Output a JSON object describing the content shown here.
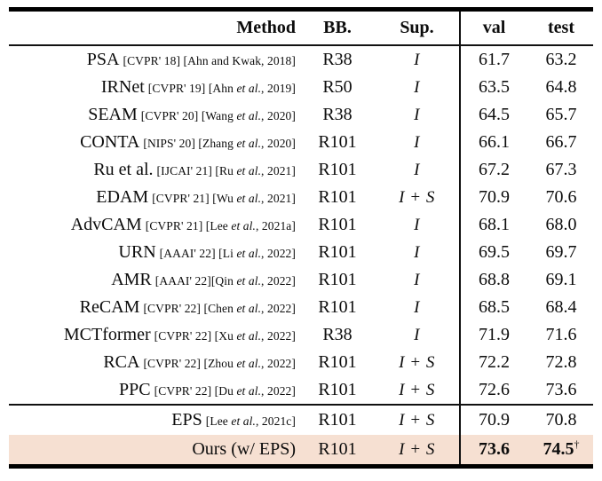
{
  "table": {
    "title": "weakly-supervised-segmentation-results",
    "highlight_bg": "#f6e0d2",
    "rule_color": "#000000",
    "headers": {
      "method": "Method",
      "bb": "BB.",
      "sup": "Sup.",
      "val": "val",
      "test": "test"
    },
    "rows": [
      {
        "name": "PSA",
        "cite_pre": "[CVPR' 18] [Ahn and Kwak, 2018]",
        "cite_italic": "",
        "cite_post": "",
        "bb": "R38",
        "sup": "I",
        "val": "61.7",
        "test": "63.2",
        "bold": false,
        "highlight": false,
        "dagger": ""
      },
      {
        "name": "IRNet",
        "cite_pre": "[CVPR' 19] [Ahn ",
        "cite_italic": "et al.",
        "cite_post": ", 2019]",
        "bb": "R50",
        "sup": "I",
        "val": "63.5",
        "test": "64.8",
        "bold": false,
        "highlight": false,
        "dagger": ""
      },
      {
        "name": "SEAM",
        "cite_pre": "[CVPR' 20] [Wang ",
        "cite_italic": "et al.",
        "cite_post": ", 2020]",
        "bb": "R38",
        "sup": "I",
        "val": "64.5",
        "test": "65.7",
        "bold": false,
        "highlight": false,
        "dagger": ""
      },
      {
        "name": "CONTA",
        "cite_pre": "[NIPS' 20] [Zhang ",
        "cite_italic": "et al.",
        "cite_post": ", 2020]",
        "bb": "R101",
        "sup": "I",
        "val": "66.1",
        "test": "66.7",
        "bold": false,
        "highlight": false,
        "dagger": ""
      },
      {
        "name": "Ru et al.",
        "cite_pre": "[IJCAI' 21] [Ru ",
        "cite_italic": "et al.",
        "cite_post": ", 2021]",
        "bb": "R101",
        "sup": "I",
        "val": "67.2",
        "test": "67.3",
        "bold": false,
        "highlight": false,
        "dagger": ""
      },
      {
        "name": "EDAM",
        "cite_pre": "[CVPR' 21] [Wu ",
        "cite_italic": "et al.",
        "cite_post": ", 2021]",
        "bb": "R101",
        "sup": "I + S",
        "val": "70.9",
        "test": "70.6",
        "bold": false,
        "highlight": false,
        "dagger": ""
      },
      {
        "name": "AdvCAM",
        "cite_pre": "[CVPR' 21] [Lee ",
        "cite_italic": "et al.",
        "cite_post": ", 2021a]",
        "bb": "R101",
        "sup": "I",
        "val": "68.1",
        "test": "68.0",
        "bold": false,
        "highlight": false,
        "dagger": ""
      },
      {
        "name": "URN",
        "cite_pre": "[AAAI' 22] [Li ",
        "cite_italic": "et al.",
        "cite_post": ", 2022]",
        "bb": "R101",
        "sup": "I",
        "val": "69.5",
        "test": "69.7",
        "bold": false,
        "highlight": false,
        "dagger": ""
      },
      {
        "name": "AMR",
        "cite_pre": "[AAAI' 22][Qin ",
        "cite_italic": "et al.",
        "cite_post": ", 2022]",
        "bb": "R101",
        "sup": "I",
        "val": "68.8",
        "test": "69.1",
        "bold": false,
        "highlight": false,
        "dagger": ""
      },
      {
        "name": "ReCAM",
        "cite_pre": "[CVPR' 22] [Chen ",
        "cite_italic": "et al.",
        "cite_post": ", 2022]",
        "bb": "R101",
        "sup": "I",
        "val": "68.5",
        "test": "68.4",
        "bold": false,
        "highlight": false,
        "dagger": ""
      },
      {
        "name": "MCTformer",
        "cite_pre": "[CVPR' 22] [Xu ",
        "cite_italic": "et al.",
        "cite_post": ", 2022]",
        "bb": "R38",
        "sup": "I",
        "val": "71.9",
        "test": "71.6",
        "bold": false,
        "highlight": false,
        "dagger": ""
      },
      {
        "name": "RCA",
        "cite_pre": "[CVPR' 22] [Zhou ",
        "cite_italic": "et al.",
        "cite_post": ", 2022]",
        "bb": "R101",
        "sup": "I + S",
        "val": "72.2",
        "test": "72.8",
        "bold": false,
        "highlight": false,
        "dagger": ""
      },
      {
        "name": "PPC",
        "cite_pre": "[CVPR' 22] [Du ",
        "cite_italic": "et al.",
        "cite_post": ", 2022]",
        "bb": "R101",
        "sup": "I + S",
        "val": "72.6",
        "test": "73.6",
        "bold": false,
        "highlight": false,
        "dagger": ""
      }
    ],
    "bottom_rows": [
      {
        "name": "EPS",
        "cite_pre": "[Lee ",
        "cite_italic": "et al.",
        "cite_post": ", 2021c]",
        "bb": "R101",
        "sup": "I + S",
        "val": "70.9",
        "test": "70.8",
        "bold": false,
        "highlight": false,
        "dagger": ""
      },
      {
        "name": "Ours (w/ EPS)",
        "cite_pre": "",
        "cite_italic": "",
        "cite_post": "",
        "bb": "R101",
        "sup": "I + S",
        "val": "73.6",
        "test": "74.5",
        "bold": true,
        "highlight": true,
        "dagger": "†"
      }
    ]
  }
}
